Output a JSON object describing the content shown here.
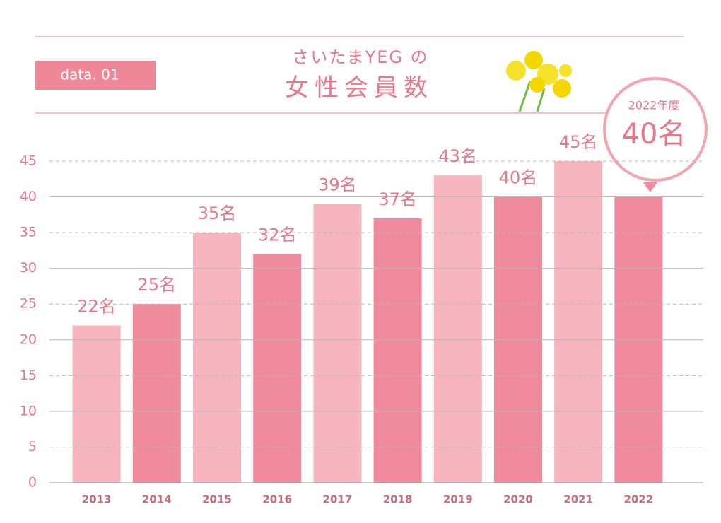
{
  "chart_data": {
    "type": "bar",
    "badge": "data. 01",
    "title": "さいたまYEG の",
    "subtitle": "女性会員数",
    "callout": {
      "label": "2022年度",
      "text": "40名"
    },
    "categories": [
      "2013",
      "2014",
      "2015",
      "2016",
      "2017",
      "2018",
      "2019",
      "2020",
      "2021",
      "2022"
    ],
    "values": [
      22,
      25,
      35,
      32,
      39,
      37,
      43,
      40,
      45,
      40
    ],
    "value_labels": [
      "22名",
      "25名",
      "35名",
      "32名",
      "39名",
      "37名",
      "43名",
      "40名",
      "45名",
      null
    ],
    "colors": [
      "#f6b4bf",
      "#ef8b9c",
      "#f6b4bf",
      "#ef8b9c",
      "#f6b4bf",
      "#ef8b9c",
      "#f6b4bf",
      "#ef8b9c",
      "#f6b4bf",
      "#ef8b9c"
    ],
    "ylim": [
      0,
      45
    ],
    "yticks": [
      0,
      5,
      10,
      15,
      20,
      25,
      30,
      35,
      40,
      45
    ],
    "grid": true
  }
}
